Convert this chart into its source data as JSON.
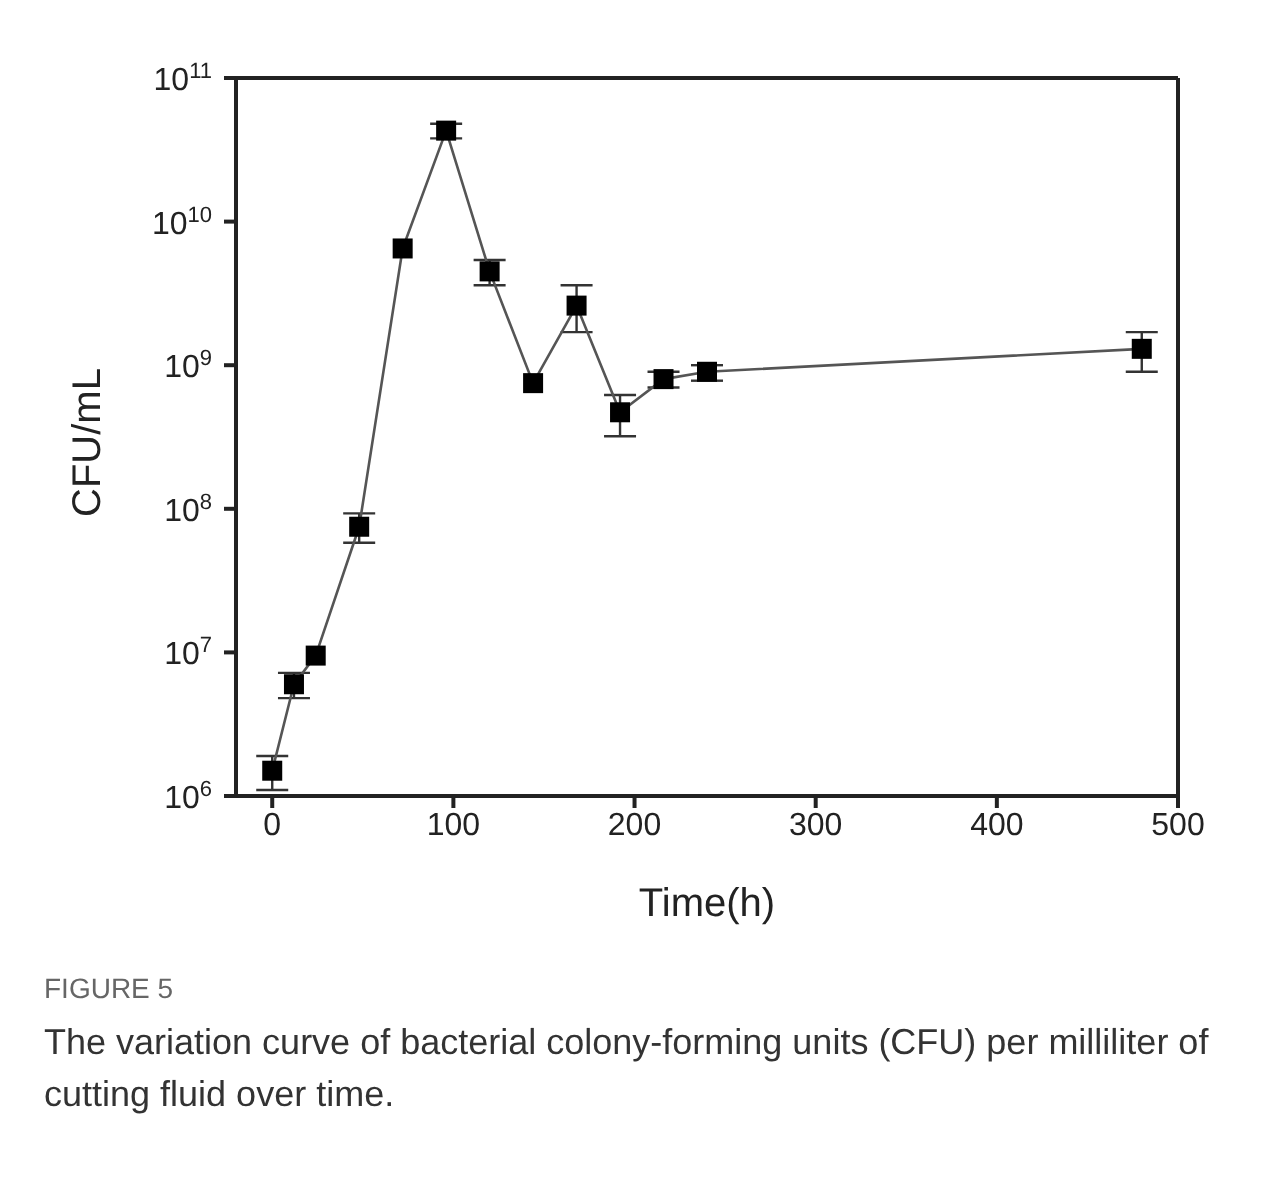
{
  "chart_data": {
    "type": "line",
    "xlabel": "Time(h)",
    "ylabel": "CFU/mL",
    "x": [
      0,
      12,
      24,
      48,
      72,
      96,
      120,
      144,
      168,
      192,
      216,
      240,
      480
    ],
    "series": [
      {
        "color": "#000000",
        "values": [
          1500000.0,
          6000000.0,
          9500000.0,
          75000000.0,
          6500000000.0,
          43000000000.0,
          4500000000.0,
          750000000.0,
          2600000000.0,
          470000000.0,
          800000000.0,
          900000000.0,
          1300000000.0
        ],
        "errors": [
          [
            1100000.0,
            1900000.0
          ],
          [
            4800000.0,
            7200000.0
          ],
          null,
          [
            58000000.0,
            93000000.0
          ],
          null,
          [
            38000000000.0,
            48000000000.0
          ],
          [
            3600000000.0,
            5400000000.0
          ],
          null,
          [
            1700000000.0,
            3600000000.0
          ],
          [
            320000000.0,
            620000000.0
          ],
          [
            700000000.0,
            900000000.0
          ],
          [
            780000000.0,
            1000000000.0
          ],
          [
            900000000.0,
            1700000000.0
          ]
        ]
      }
    ],
    "log": "y",
    "xlim": [
      -20,
      500
    ],
    "xticks": [
      0,
      100,
      200,
      300,
      400,
      500
    ],
    "ylim": [
      1000000.0,
      100000000000.0
    ],
    "yticks": [
      {
        "value": 1000000.0,
        "label": "10$^{6}$"
      },
      {
        "value": 10000000.0,
        "label": "10$^{7}$"
      },
      {
        "value": 100000000.0,
        "label": "10$^{8}$"
      },
      {
        "value": 1000000000.0,
        "label": "10$^{9}$"
      },
      {
        "value": 10000000000.0,
        "label": "10$^{10}$"
      },
      {
        "value": 100000000000.0,
        "label": "10$^{11}$"
      }
    ],
    "marker": "square",
    "line_style": "solid",
    "grid": false,
    "legend": false,
    "annotations": [
      "FIGURE 5",
      "The variation curve of bacterial colony-forming units (CFU) per milliliter of cutting fluid over time."
    ]
  }
}
